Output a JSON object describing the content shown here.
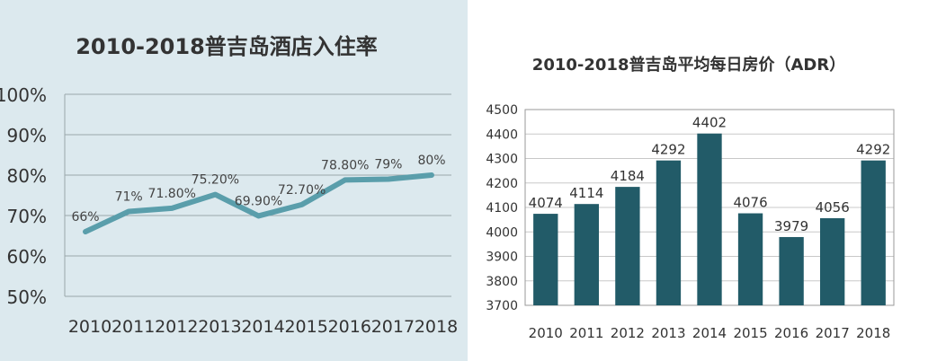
{
  "chart_data": [
    {
      "type": "line",
      "title": "2010-2018普吉岛酒店入住率",
      "categories": [
        "2010",
        "2011",
        "2012",
        "2013",
        "2014",
        "2015",
        "2016",
        "2017",
        "2018"
      ],
      "series": [
        {
          "values": [
            66.0,
            71.0,
            71.8,
            75.2,
            69.9,
            72.7,
            78.8,
            79.0,
            80.0
          ],
          "labels": [
            "66%",
            "71%",
            "71.80%",
            "75.20%",
            "69.90%",
            "72.70%",
            "78.80%",
            "79%",
            "80%"
          ]
        }
      ],
      "yticks": [
        "50%",
        "60%",
        "70%",
        "80%",
        "90%",
        "100%"
      ],
      "ylim": [
        50,
        100
      ],
      "grid": true,
      "line_color": "#5a9eab",
      "background": "#dce9ee"
    },
    {
      "type": "bar",
      "title": "2010-2018普吉岛平均每日房价（ADR）",
      "categories": [
        "2010",
        "2011",
        "2012",
        "2013",
        "2014",
        "2015",
        "2016",
        "2017",
        "2018"
      ],
      "values": [
        4074,
        4114,
        4184,
        4292,
        4402,
        4076,
        3979,
        4056,
        4292
      ],
      "data_labels": [
        "4074",
        "4114",
        "4184",
        "4292",
        "4402",
        "4076",
        "3979",
        "4056",
        "4292"
      ],
      "yticks": [
        "3700",
        "3800",
        "3900",
        "4000",
        "4100",
        "4200",
        "4300",
        "4400",
        "4500"
      ],
      "ylim": [
        3700,
        4500
      ],
      "grid": true,
      "bar_color": "#225b68"
    }
  ]
}
